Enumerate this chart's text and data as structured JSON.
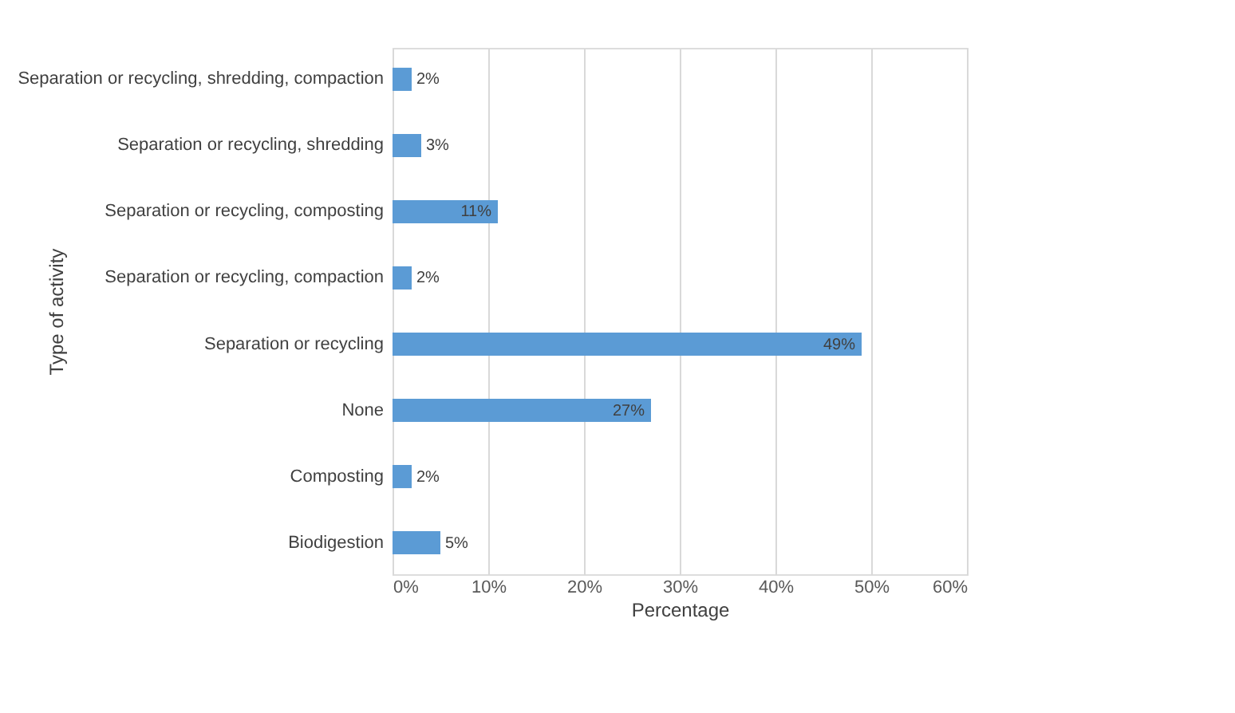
{
  "chart_data": {
    "type": "bar",
    "orientation": "horizontal",
    "xlabel": "Percentage",
    "ylabel": "Type of activity",
    "categories": [
      "Separation or recycling, shredding, compaction",
      "Separation or recycling, shredding",
      "Separation or recycling, composting",
      "Separation or recycling, compaction",
      "Separation or recycling",
      "None",
      "Composting",
      "Biodigestion"
    ],
    "values": [
      2,
      3,
      11,
      2,
      49,
      27,
      2,
      5
    ],
    "color": "#5b9bd5",
    "value_labels": [
      "2%",
      "3%",
      "11%",
      "2%",
      "49%",
      "27%",
      "2%",
      "5%"
    ],
    "xlim": [
      0,
      60
    ],
    "xticks": [
      {
        "value": 0,
        "label": "0%"
      },
      {
        "value": 10,
        "label": "10%"
      },
      {
        "value": 20,
        "label": "20%"
      },
      {
        "value": 30,
        "label": "30%"
      },
      {
        "value": 40,
        "label": "40%"
      },
      {
        "value": 50,
        "label": "50%"
      },
      {
        "value": 60,
        "label": "60%"
      }
    ],
    "grid": "x"
  }
}
